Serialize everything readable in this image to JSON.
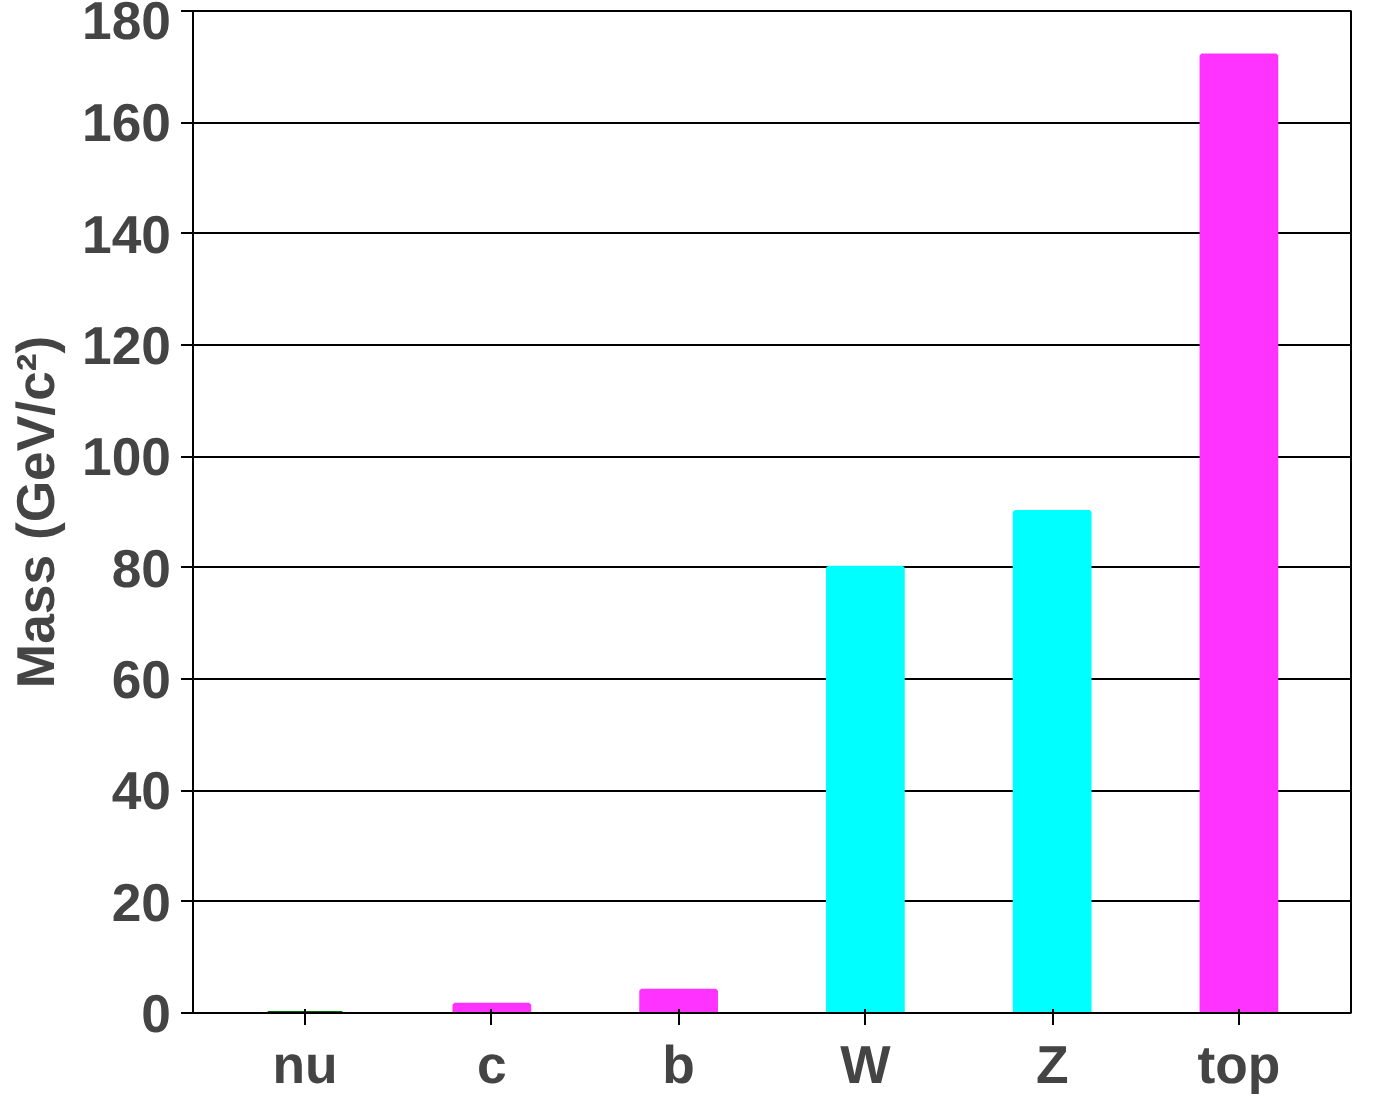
{
  "chart_data": {
    "type": "bar",
    "ylabel": "Mass (GeV/c²)",
    "categories": [
      "nu",
      "c",
      "b",
      "W",
      "Z",
      "top"
    ],
    "values": [
      0,
      1.5,
      4,
      80,
      90,
      172
    ],
    "colors": [
      "#006600",
      "#ff33ff",
      "#ff33ff",
      "#00ffff",
      "#00ffff",
      "#ff33ff"
    ],
    "ylim": [
      0,
      180
    ],
    "yticks": [
      0,
      20,
      40,
      60,
      80,
      100,
      120,
      140,
      160,
      180
    ],
    "grid": "y"
  }
}
